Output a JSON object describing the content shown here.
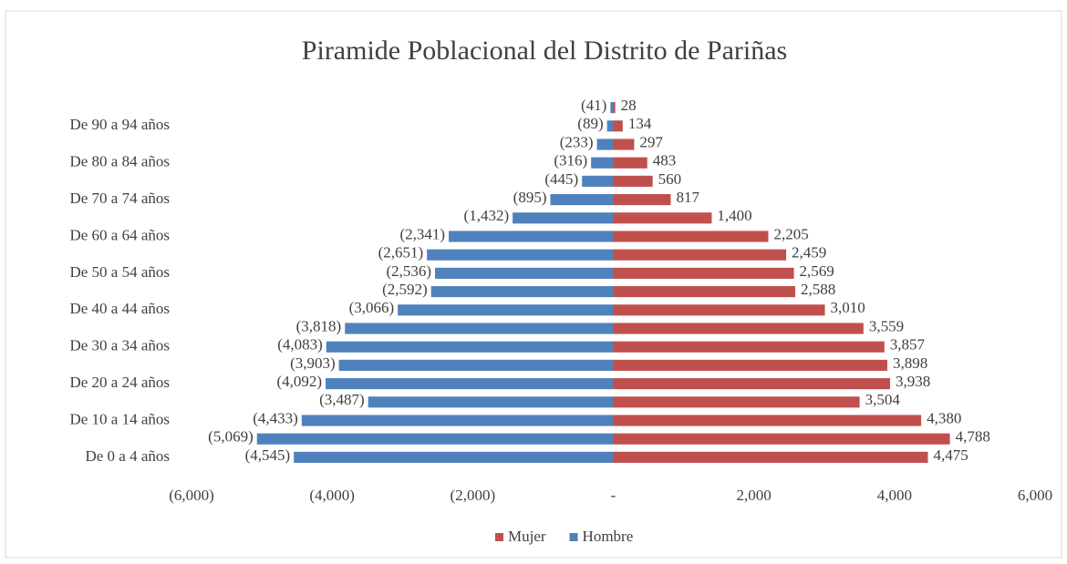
{
  "chart_data": {
    "type": "bar",
    "title": "Piramide Poblacional  del Distrito de Pariñas",
    "categories": [
      "De 0 a 4 años",
      null,
      "De 10 a 14 años",
      null,
      "De 20 a 24 años",
      null,
      "De 30 a 34 años",
      null,
      "De 40 a 44 años",
      null,
      "De 50 a 54 años",
      null,
      "De 60 a 64 años",
      null,
      "De 70 a 74 años",
      null,
      "De 80 a 84 años",
      null,
      "De 90 a 94 años",
      null
    ],
    "series": [
      {
        "name": "Mujer",
        "color": "#c0504d",
        "values": [
          4475,
          4788,
          4380,
          3504,
          3938,
          3898,
          3857,
          3559,
          3010,
          2588,
          2569,
          2459,
          2205,
          1400,
          817,
          560,
          483,
          297,
          134,
          28
        ],
        "value_labels": [
          "4,475",
          "4,788",
          "4,380",
          "3,504",
          "3,938",
          "3,898",
          "3,857",
          "3,559",
          "3,010",
          "2,588",
          "2,569",
          "2,459",
          "2,205",
          "1,400",
          "817",
          "560",
          "483",
          "297",
          "134",
          "28"
        ]
      },
      {
        "name": "Hombre",
        "color": "#4f81bd",
        "values": [
          -4545,
          -5069,
          -4433,
          -3487,
          -4092,
          -3903,
          -4083,
          -3818,
          -3066,
          -2592,
          -2536,
          -2651,
          -2341,
          -1432,
          -895,
          -445,
          -316,
          -233,
          -89,
          -41
        ],
        "value_labels": [
          "(4,545)",
          "(5,069)",
          "(4,433)",
          "(3,487)",
          "(4,092)",
          "(3,903)",
          "(4,083)",
          "(3,818)",
          "(3,066)",
          "(2,592)",
          "(2,536)",
          "(2,651)",
          "(2,341)",
          "(1,432)",
          "(895)",
          "(445)",
          "(316)",
          "(233)",
          "(89)",
          "(41)"
        ]
      }
    ],
    "xlim": [
      -6000,
      6000
    ],
    "xticks": [
      {
        "value": -6000,
        "label": "(6,000)"
      },
      {
        "value": -4000,
        "label": "(4,000)"
      },
      {
        "value": -2000,
        "label": "(2,000)"
      },
      {
        "value": 0,
        "label": "-"
      },
      {
        "value": 2000,
        "label": "2,000"
      },
      {
        "value": 4000,
        "label": "4,000"
      },
      {
        "value": 6000,
        "label": "6,000"
      }
    ],
    "legend": "bottom"
  }
}
